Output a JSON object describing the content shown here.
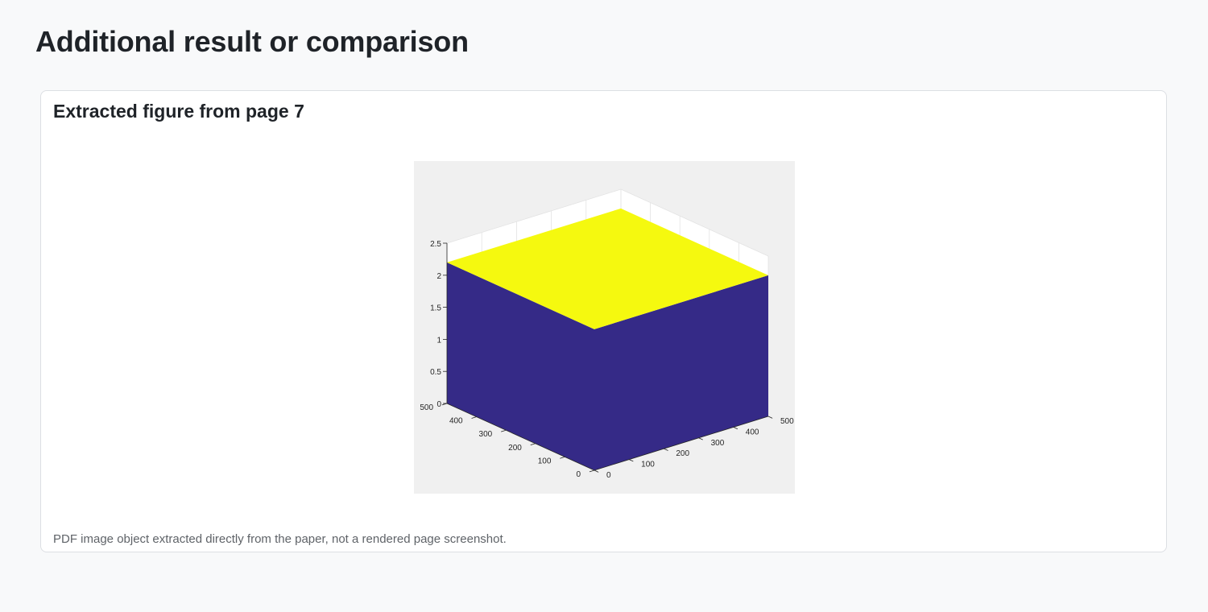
{
  "page": {
    "title": "Additional result or comparison"
  },
  "card": {
    "title": "Extracted figure from page 7",
    "caption": "PDF image object extracted directly from the paper, not a rendered page screenshot."
  },
  "chart_data": {
    "type": "surface",
    "title": "",
    "xlabel": "",
    "ylabel": "",
    "zlabel": "",
    "x_ticks": [
      "0",
      "100",
      "200",
      "300",
      "400",
      "500"
    ],
    "y_ticks": [
      "0",
      "100",
      "200",
      "300",
      "400",
      "500"
    ],
    "z_ticks": [
      "0",
      "0.5",
      "1",
      "1.5",
      "2",
      "2.5"
    ],
    "xlim": [
      0,
      500
    ],
    "ylim": [
      0,
      500
    ],
    "zlim": [
      0,
      2.5
    ],
    "grid": true,
    "block": {
      "x_range": [
        0,
        500
      ],
      "y_range": [
        0,
        500
      ],
      "height": 2.2,
      "base": 0
    },
    "colors": {
      "top": "#f5f90f",
      "sides": "#352a87",
      "background": "#f0f0f0",
      "axes": "#ffffff"
    }
  }
}
